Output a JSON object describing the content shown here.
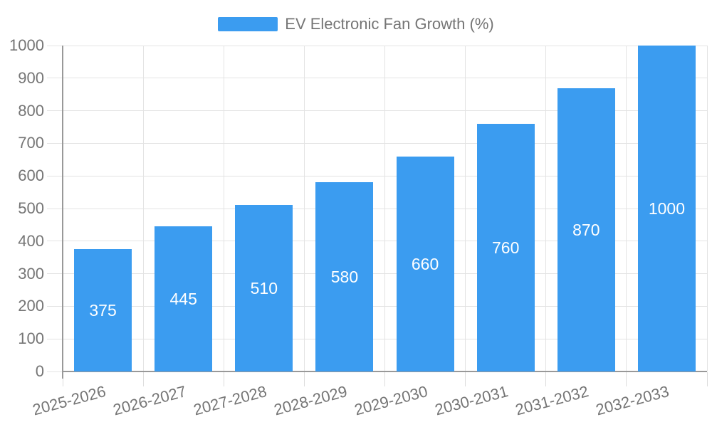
{
  "page": {
    "background": "#ffffff"
  },
  "legend": {
    "label": "EV Electronic Fan Growth (%)"
  },
  "chart_data": {
    "type": "bar",
    "title": "EV Electronic Fan Growth (%)",
    "categories": [
      "2025-2026",
      "2026-2027",
      "2027-2028",
      "2028-2029",
      "2029-2030",
      "2030-2031",
      "2031-2032",
      "2032-2033"
    ],
    "values": [
      375,
      445,
      510,
      580,
      660,
      760,
      870,
      1000
    ],
    "value_labels": [
      "375",
      "445",
      "510",
      "580",
      "660",
      "760",
      "870",
      "1000"
    ],
    "xlabel": "",
    "ylabel": "",
    "ylim": [
      0,
      1000
    ],
    "ytick_step": 100,
    "ytick_labels": [
      "0",
      "100",
      "200",
      "300",
      "400",
      "500",
      "600",
      "700",
      "800",
      "900",
      "1000"
    ],
    "grid": {
      "horizontal": true,
      "vertical": true
    },
    "legend_position": "top-center",
    "bar_label_position": "inside-center",
    "x_label_rotation_deg": -15,
    "colors": {
      "bar": "#3b9cf0",
      "bar_value_label": "#ffffff",
      "axis_label": "#757575",
      "gridline": "#e3e3e3",
      "axis_line": "#999999",
      "background": "#ffffff"
    }
  }
}
